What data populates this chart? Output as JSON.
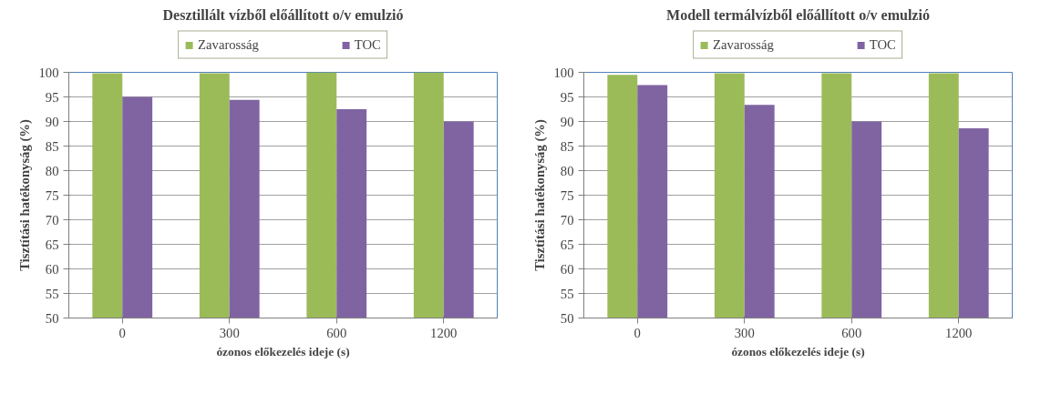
{
  "chart_data": [
    {
      "type": "bar",
      "title": "Desztillált vízből előállított o/v emulzió",
      "xlabel": "ózonos előkezelés ideje (s)",
      "ylabel": "Tisztítási hatékonyság (%)",
      "categories": [
        "0",
        "300",
        "600",
        "1200"
      ],
      "series": [
        {
          "name": "Zavarosság",
          "color": "#9bbb59",
          "values": [
            99.8,
            99.8,
            100,
            100
          ]
        },
        {
          "name": "TOC",
          "color": "#8064a2",
          "values": [
            95,
            94.4,
            92.5,
            90
          ]
        }
      ],
      "ylim": [
        50,
        100
      ],
      "yticks": [
        50,
        55,
        60,
        65,
        70,
        75,
        80,
        85,
        90,
        95,
        100
      ],
      "grid": "y",
      "legend": "top"
    },
    {
      "type": "bar",
      "title": "Modell termálvízből előállított o/v emulzió",
      "xlabel": "ózonos előkezelés ideje (s)",
      "ylabel": "Tisztítási hatékonyság (%)",
      "categories": [
        "0",
        "300",
        "600",
        "1200"
      ],
      "series": [
        {
          "name": "Zavarosság",
          "color": "#9bbb59",
          "values": [
            99.5,
            99.8,
            99.8,
            99.8
          ]
        },
        {
          "name": "TOC",
          "color": "#8064a2",
          "values": [
            97.4,
            93.4,
            90,
            88.6
          ]
        }
      ],
      "ylim": [
        50,
        100
      ],
      "yticks": [
        50,
        55,
        60,
        65,
        70,
        75,
        80,
        85,
        90,
        95,
        100
      ],
      "grid": "y",
      "legend": "top"
    }
  ]
}
